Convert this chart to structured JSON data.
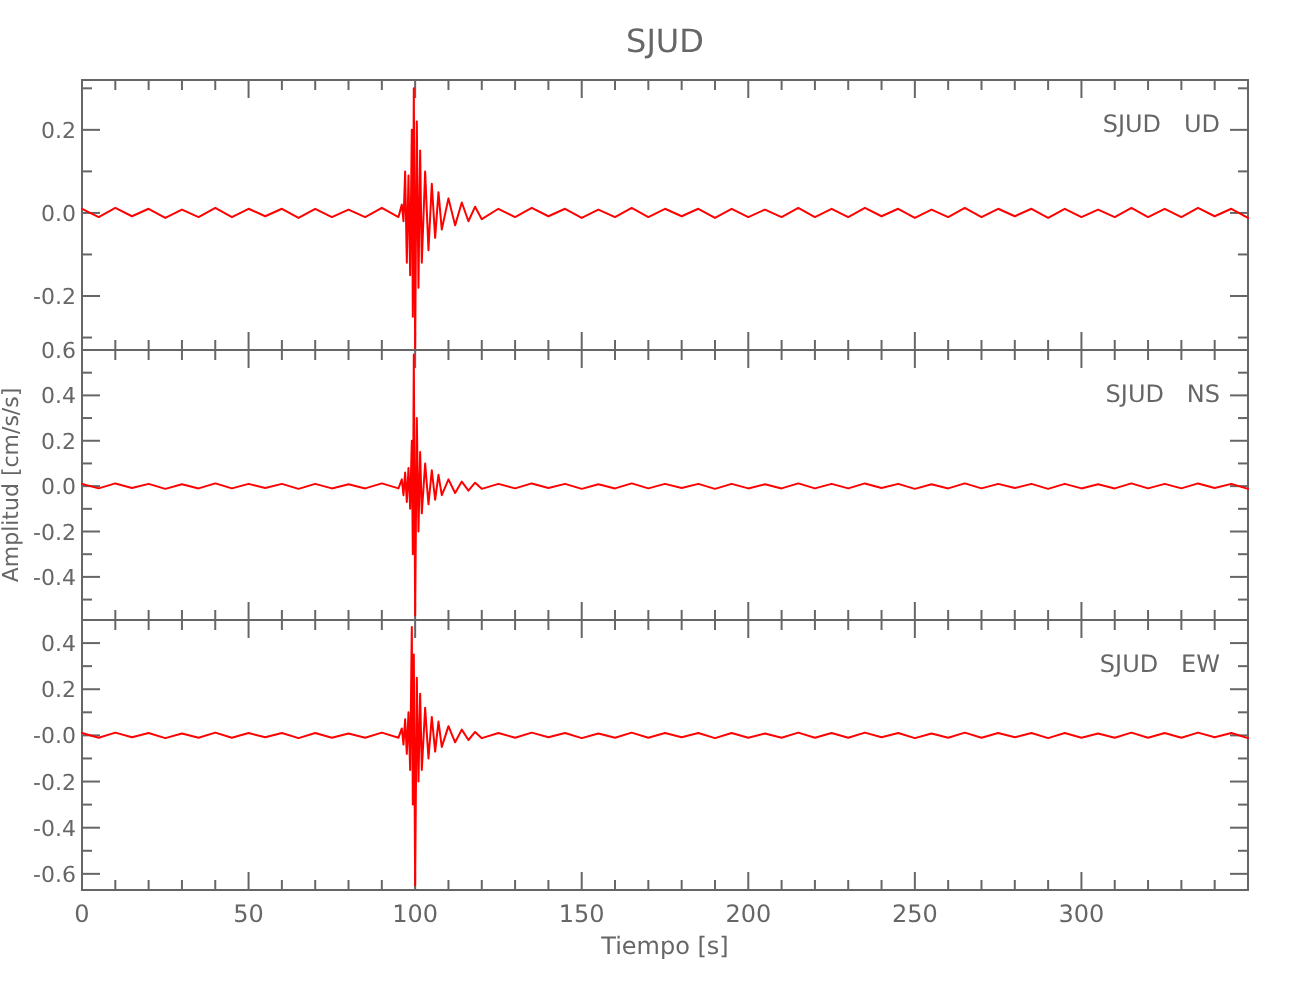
{
  "chart_data": [
    {
      "type": "line",
      "title": "SJUD",
      "annotations": [
        "SJUD   UD"
      ],
      "tick_labels": "y",
      "xlim": [
        0,
        350
      ],
      "ylim": [
        -0.33,
        0.32
      ],
      "xticks": [
        0,
        {
          "value": 10,
          "label": null
        },
        {
          "value": 20,
          "label": null
        },
        {
          "value": 30,
          "label": null
        },
        {
          "value": 40,
          "label": null
        },
        50,
        {
          "value": 60,
          "label": null
        },
        {
          "value": 70,
          "label": null
        },
        {
          "value": 80,
          "label": null
        },
        {
          "value": 90,
          "label": null
        },
        100,
        {
          "value": 110,
          "label": null
        },
        {
          "value": 120,
          "label": null
        },
        {
          "value": 130,
          "label": null
        },
        {
          "value": 140,
          "label": null
        },
        150,
        {
          "value": 160,
          "label": null
        },
        {
          "value": 170,
          "label": null
        },
        {
          "value": 180,
          "label": null
        },
        {
          "value": 190,
          "label": null
        },
        200,
        {
          "value": 210,
          "label": null
        },
        {
          "value": 220,
          "label": null
        },
        {
          "value": 230,
          "label": null
        },
        {
          "value": 240,
          "label": null
        },
        250,
        {
          "value": 260,
          "label": null
        },
        {
          "value": 270,
          "label": null
        },
        {
          "value": 280,
          "label": null
        },
        {
          "value": 290,
          "label": null
        },
        300,
        {
          "value": 310,
          "label": null
        },
        {
          "value": 320,
          "label": null
        },
        {
          "value": 330,
          "label": null
        },
        {
          "value": 340,
          "label": null
        }
      ],
      "yticks": [
        {
          "value": -0.3,
          "label": null
        },
        -0.2,
        {
          "value": -0.1,
          "label": null
        },
        {
          "value": 0,
          "label": "0.0"
        },
        {
          "value": 0.1,
          "label": null
        },
        0.2,
        {
          "value": 0.3,
          "label": null
        }
      ],
      "x": [
        0,
        5,
        10,
        15,
        20,
        25,
        30,
        35,
        40,
        45,
        50,
        55,
        60,
        65,
        70,
        75,
        80,
        85,
        90,
        95,
        96,
        96.5,
        97,
        97.5,
        98,
        98.5,
        99,
        99.3,
        99.6,
        100,
        100.5,
        101,
        101.5,
        102,
        103,
        104,
        105,
        106,
        107,
        108,
        110,
        112,
        114,
        116,
        118,
        120,
        125,
        130,
        135,
        140,
        145,
        150,
        155,
        160,
        165,
        170,
        175,
        180,
        185,
        190,
        195,
        200,
        205,
        210,
        215,
        220,
        225,
        230,
        235,
        240,
        245,
        250,
        255,
        260,
        265,
        270,
        275,
        280,
        285,
        290,
        295,
        300,
        305,
        310,
        315,
        320,
        325,
        330,
        335,
        340,
        345,
        350
      ],
      "series": [
        {
          "color": "#ff0000",
          "values": [
            0.01,
            -0.01,
            0.012,
            -0.008,
            0.01,
            -0.012,
            0.008,
            -0.01,
            0.012,
            -0.01,
            0.01,
            -0.008,
            0.01,
            -0.012,
            0.01,
            -0.01,
            0.008,
            -0.01,
            0.012,
            -0.01,
            0.02,
            -0.02,
            0.1,
            -0.12,
            0.09,
            -0.15,
            0.2,
            -0.25,
            0.3,
            -0.33,
            0.22,
            -0.18,
            0.15,
            -0.12,
            0.1,
            -0.09,
            0.07,
            -0.06,
            0.05,
            -0.04,
            0.035,
            -0.03,
            0.025,
            -0.02,
            0.015,
            -0.015,
            0.01,
            -0.01,
            0.012,
            -0.008,
            0.01,
            -0.012,
            0.008,
            -0.01,
            0.012,
            -0.01,
            0.01,
            -0.008,
            0.01,
            -0.012,
            0.01,
            -0.01,
            0.008,
            -0.01,
            0.012,
            -0.01,
            0.01,
            -0.01,
            0.012,
            -0.008,
            0.01,
            -0.012,
            0.008,
            -0.01,
            0.012,
            -0.01,
            0.01,
            -0.008,
            0.01,
            -0.012,
            0.01,
            -0.01,
            0.008,
            -0.01,
            0.012,
            -0.01,
            0.01,
            -0.01,
            0.012,
            -0.008,
            0.01,
            -0.012
          ]
        }
      ]
    },
    {
      "type": "line",
      "ylabel": "Amplitud [cm/s/s]",
      "annotations": [
        "SJUD   NS"
      ],
      "tick_labels": "y",
      "xlim": [
        0,
        350
      ],
      "ylim": [
        -0.59,
        0.6
      ],
      "xticks": [
        0,
        {
          "value": 10,
          "label": null
        },
        {
          "value": 20,
          "label": null
        },
        {
          "value": 30,
          "label": null
        },
        {
          "value": 40,
          "label": null
        },
        50,
        {
          "value": 60,
          "label": null
        },
        {
          "value": 70,
          "label": null
        },
        {
          "value": 80,
          "label": null
        },
        {
          "value": 90,
          "label": null
        },
        100,
        {
          "value": 110,
          "label": null
        },
        {
          "value": 120,
          "label": null
        },
        {
          "value": 130,
          "label": null
        },
        {
          "value": 140,
          "label": null
        },
        150,
        {
          "value": 160,
          "label": null
        },
        {
          "value": 170,
          "label": null
        },
        {
          "value": 180,
          "label": null
        },
        {
          "value": 190,
          "label": null
        },
        200,
        {
          "value": 210,
          "label": null
        },
        {
          "value": 220,
          "label": null
        },
        {
          "value": 230,
          "label": null
        },
        {
          "value": 240,
          "label": null
        },
        250,
        {
          "value": 260,
          "label": null
        },
        {
          "value": 270,
          "label": null
        },
        {
          "value": 280,
          "label": null
        },
        {
          "value": 290,
          "label": null
        },
        300,
        {
          "value": 310,
          "label": null
        },
        {
          "value": 320,
          "label": null
        },
        {
          "value": 330,
          "label": null
        },
        {
          "value": 340,
          "label": null
        }
      ],
      "yticks": [
        {
          "value": -0.5,
          "label": null
        },
        -0.4,
        {
          "value": -0.3,
          "label": null
        },
        -0.2,
        {
          "value": -0.1,
          "label": null
        },
        {
          "value": 0,
          "label": "0.0"
        },
        {
          "value": 0.1,
          "label": null
        },
        0.2,
        {
          "value": 0.3,
          "label": null
        },
        0.4,
        {
          "value": 0.5,
          "label": null
        },
        0.6
      ],
      "x": [
        0,
        5,
        10,
        15,
        20,
        25,
        30,
        35,
        40,
        45,
        50,
        55,
        60,
        65,
        70,
        75,
        80,
        85,
        90,
        95,
        96,
        96.5,
        97,
        97.5,
        98,
        98.5,
        99,
        99.3,
        99.6,
        100,
        100.5,
        101,
        101.5,
        102,
        103,
        104,
        105,
        106,
        107,
        108,
        110,
        112,
        114,
        116,
        118,
        120,
        125,
        130,
        135,
        140,
        145,
        150,
        155,
        160,
        165,
        170,
        175,
        180,
        185,
        190,
        195,
        200,
        205,
        210,
        215,
        220,
        225,
        230,
        235,
        240,
        245,
        250,
        255,
        260,
        265,
        270,
        275,
        280,
        285,
        290,
        295,
        300,
        305,
        310,
        315,
        320,
        325,
        330,
        335,
        340,
        345,
        350
      ],
      "series": [
        {
          "color": "#ff0000",
          "values": [
            0.01,
            -0.01,
            0.012,
            -0.008,
            0.01,
            -0.012,
            0.008,
            -0.01,
            0.012,
            -0.01,
            0.01,
            -0.008,
            0.01,
            -0.012,
            0.01,
            -0.01,
            0.008,
            -0.01,
            0.012,
            -0.01,
            0.03,
            -0.04,
            0.06,
            -0.07,
            0.08,
            -0.1,
            0.2,
            -0.3,
            0.58,
            -0.57,
            0.3,
            -0.2,
            0.15,
            -0.12,
            0.1,
            -0.08,
            0.07,
            -0.06,
            0.05,
            -0.04,
            0.03,
            -0.03,
            0.02,
            -0.02,
            0.015,
            -0.012,
            0.01,
            -0.01,
            0.012,
            -0.008,
            0.01,
            -0.012,
            0.008,
            -0.01,
            0.012,
            -0.01,
            0.01,
            -0.008,
            0.01,
            -0.012,
            0.01,
            -0.01,
            0.008,
            -0.01,
            0.012,
            -0.01,
            0.01,
            -0.01,
            0.012,
            -0.008,
            0.01,
            -0.012,
            0.008,
            -0.01,
            0.012,
            -0.01,
            0.01,
            -0.008,
            0.01,
            -0.012,
            0.01,
            -0.01,
            0.008,
            -0.01,
            0.012,
            -0.01,
            0.01,
            -0.01,
            0.012,
            -0.008,
            0.01,
            -0.012
          ]
        }
      ]
    },
    {
      "type": "line",
      "xlabel": "Tiempo [s]",
      "annotations": [
        "SJUD   EW"
      ],
      "xlim": [
        0,
        350
      ],
      "ylim": [
        -0.67,
        0.5
      ],
      "xticks": [
        0,
        {
          "value": 10,
          "label": null
        },
        {
          "value": 20,
          "label": null
        },
        {
          "value": 30,
          "label": null
        },
        {
          "value": 40,
          "label": null
        },
        50,
        {
          "value": 60,
          "label": null
        },
        {
          "value": 70,
          "label": null
        },
        {
          "value": 80,
          "label": null
        },
        {
          "value": 90,
          "label": null
        },
        100,
        {
          "value": 110,
          "label": null
        },
        {
          "value": 120,
          "label": null
        },
        {
          "value": 130,
          "label": null
        },
        {
          "value": 140,
          "label": null
        },
        150,
        {
          "value": 160,
          "label": null
        },
        {
          "value": 170,
          "label": null
        },
        {
          "value": 180,
          "label": null
        },
        {
          "value": 190,
          "label": null
        },
        200,
        {
          "value": 210,
          "label": null
        },
        {
          "value": 220,
          "label": null
        },
        {
          "value": 230,
          "label": null
        },
        {
          "value": 240,
          "label": null
        },
        250,
        {
          "value": 260,
          "label": null
        },
        {
          "value": 270,
          "label": null
        },
        {
          "value": 280,
          "label": null
        },
        {
          "value": 290,
          "label": null
        },
        300,
        {
          "value": 310,
          "label": null
        },
        {
          "value": 320,
          "label": null
        },
        {
          "value": 330,
          "label": null
        },
        {
          "value": 340,
          "label": null
        }
      ],
      "yticks": [
        -0.6,
        {
          "value": -0.5,
          "label": null
        },
        -0.4,
        {
          "value": -0.3,
          "label": null
        },
        -0.2,
        {
          "value": -0.1,
          "label": null
        },
        {
          "value": 0,
          "label": "-0.0"
        },
        {
          "value": 0.1,
          "label": null
        },
        0.2,
        {
          "value": 0.3,
          "label": null
        },
        0.4
      ],
      "x": [
        0,
        5,
        10,
        15,
        20,
        25,
        30,
        35,
        40,
        45,
        50,
        55,
        60,
        65,
        70,
        75,
        80,
        85,
        90,
        95,
        96,
        96.5,
        97,
        97.5,
        98,
        98.5,
        99,
        99.3,
        99.6,
        100,
        100.5,
        101,
        101.5,
        102,
        103,
        104,
        105,
        106,
        107,
        108,
        110,
        112,
        114,
        116,
        118,
        120,
        125,
        130,
        135,
        140,
        145,
        150,
        155,
        160,
        165,
        170,
        175,
        180,
        185,
        190,
        195,
        200,
        205,
        210,
        215,
        220,
        225,
        230,
        235,
        240,
        245,
        250,
        255,
        260,
        265,
        270,
        275,
        280,
        285,
        290,
        295,
        300,
        305,
        310,
        315,
        320,
        325,
        330,
        335,
        340,
        345,
        350
      ],
      "series": [
        {
          "color": "#ff0000",
          "values": [
            0.01,
            -0.01,
            0.012,
            -0.008,
            0.01,
            -0.012,
            0.008,
            -0.01,
            0.012,
            -0.01,
            0.01,
            -0.008,
            0.01,
            -0.012,
            0.01,
            -0.01,
            0.008,
            -0.01,
            0.012,
            -0.01,
            0.03,
            -0.04,
            0.07,
            -0.08,
            0.1,
            -0.15,
            0.47,
            -0.3,
            0.35,
            -0.65,
            0.25,
            -0.2,
            0.18,
            -0.15,
            0.12,
            -0.1,
            0.08,
            -0.07,
            0.06,
            -0.05,
            0.04,
            -0.03,
            0.025,
            -0.02,
            0.015,
            -0.012,
            0.01,
            -0.01,
            0.012,
            -0.008,
            0.01,
            -0.012,
            0.008,
            -0.01,
            0.012,
            -0.01,
            0.01,
            -0.008,
            0.01,
            -0.012,
            0.01,
            -0.01,
            0.008,
            -0.01,
            0.012,
            -0.01,
            0.01,
            -0.01,
            0.012,
            -0.008,
            0.01,
            -0.012,
            0.008,
            -0.01,
            0.012,
            -0.01,
            0.01,
            -0.008,
            0.01,
            -0.012,
            0.01,
            -0.01,
            0.008,
            -0.01,
            0.012,
            -0.01,
            0.01,
            -0.01,
            0.012,
            -0.008,
            0.01,
            -0.012
          ]
        }
      ]
    }
  ]
}
